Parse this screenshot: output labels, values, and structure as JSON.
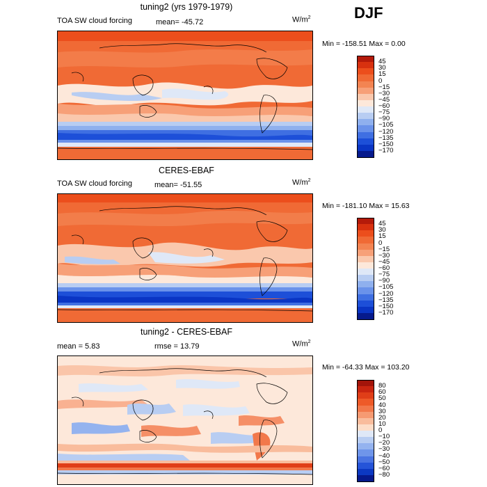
{
  "season": "DJF",
  "panels": [
    {
      "title": "tuning2 (yrs 1979-1979)",
      "field_label": "TOA SW cloud forcing",
      "mean_text": "mean=  -45.72",
      "units": "W/m",
      "units_sup": "2",
      "minmax": "Min = -158.51  Max =    0.00",
      "colorbar": {
        "labels": [
          "45",
          "30",
          "15",
          "0",
          "−15",
          "−30",
          "−45",
          "−60",
          "−75",
          "−90",
          "−105",
          "−120",
          "−135",
          "−150",
          "−170"
        ],
        "colors": [
          "#b41a0a",
          "#d8310f",
          "#ec4e1c",
          "#f06a35",
          "#f38452",
          "#f7a078",
          "#fac8ad",
          "#fde8da",
          "#dfe8f7",
          "#b8cdf2",
          "#8fb0ee",
          "#6a92ea",
          "#3f6fe2",
          "#1d4fd8",
          "#0a35c4",
          "#061a8c"
        ]
      }
    },
    {
      "title": "CERES-EBAF",
      "field_label": "TOA SW cloud forcing",
      "mean_text": "mean=  -51.55",
      "units": "W/m",
      "units_sup": "2",
      "minmax": "Min = -181.10  Max =   15.63",
      "colorbar": {
        "labels": [
          "45",
          "30",
          "15",
          "0",
          "−15",
          "−30",
          "−45",
          "−60",
          "−75",
          "−90",
          "−105",
          "−120",
          "−135",
          "−150",
          "−170"
        ],
        "colors": [
          "#b41a0a",
          "#d8310f",
          "#ec4e1c",
          "#f06a35",
          "#f38452",
          "#f7a078",
          "#fac8ad",
          "#fde8da",
          "#dfe8f7",
          "#b8cdf2",
          "#8fb0ee",
          "#6a92ea",
          "#3f6fe2",
          "#1d4fd8",
          "#0a35c4",
          "#061a8c"
        ]
      }
    },
    {
      "title": "tuning2 - CERES-EBAF",
      "mean_text": "mean =    5.83",
      "rmse_text": "rmse =   13.79",
      "units": "W/m",
      "units_sup": "2",
      "minmax": "Min = -64.33  Max = 103.20",
      "colorbar": {
        "labels": [
          "80",
          "60",
          "50",
          "40",
          "30",
          "20",
          "10",
          "0",
          "−10",
          "−20",
          "−30",
          "−40",
          "−50",
          "−60",
          "−80"
        ],
        "colors": [
          "#a3140a",
          "#c92510",
          "#e03e18",
          "#ee5a28",
          "#f2784a",
          "#f69a72",
          "#f9bc9c",
          "#fdddc8",
          "#dfe8f7",
          "#b8cdf2",
          "#94b3ef",
          "#6f95ea",
          "#4a74e2",
          "#2554d8",
          "#0c38c2",
          "#06198c"
        ]
      }
    }
  ]
}
